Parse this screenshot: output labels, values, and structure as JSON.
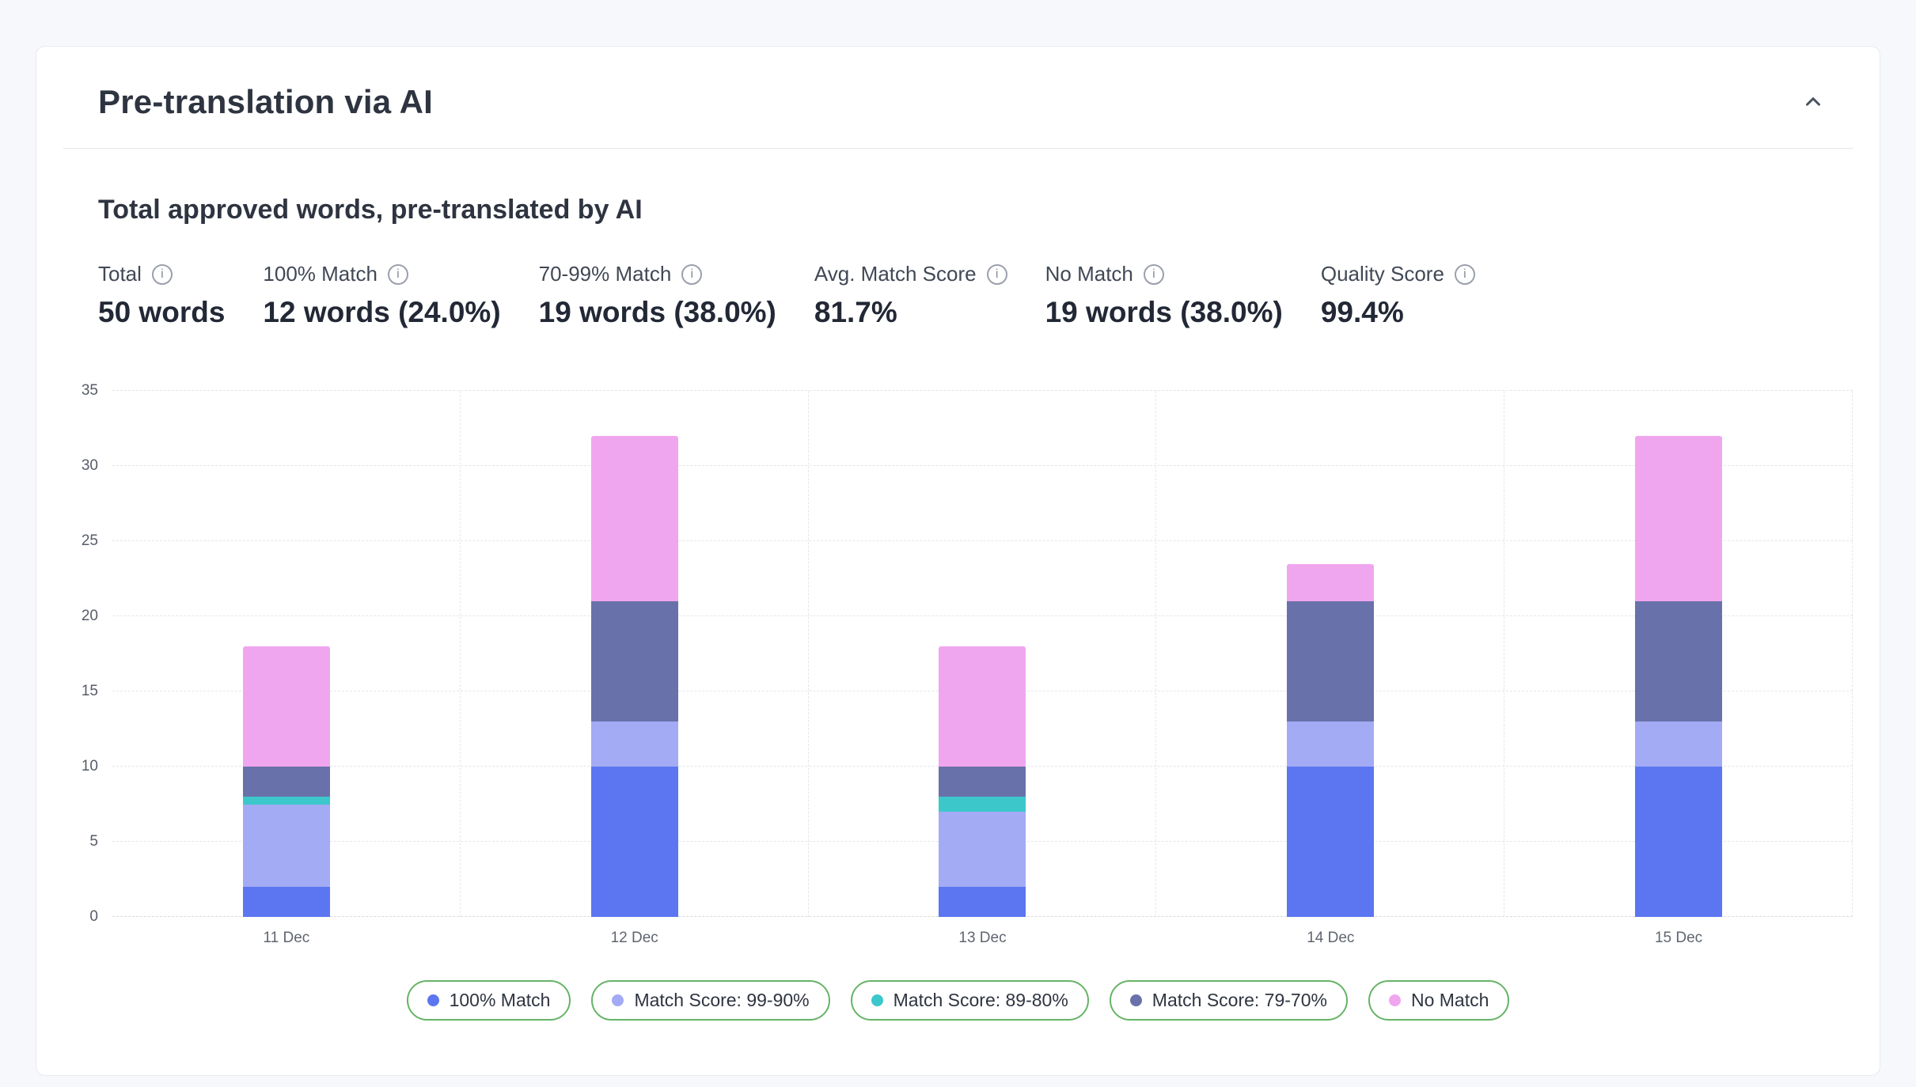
{
  "card": {
    "title": "Pre-translation via AI",
    "subtitle": "Total approved words, pre-translated by AI"
  },
  "stats": [
    {
      "label": "Total",
      "value": "50 words"
    },
    {
      "label": "100% Match",
      "value": "12 words (24.0%)"
    },
    {
      "label": "70-99% Match",
      "value": "19 words (38.0%)"
    },
    {
      "label": "Avg. Match Score",
      "value": "81.7%"
    },
    {
      "label": "No Match",
      "value": "19 words (38.0%)"
    },
    {
      "label": "Quality Score",
      "value": "99.4%"
    }
  ],
  "icons": {
    "info": "i",
    "collapse": "chevron-up"
  },
  "chart_data": {
    "type": "bar",
    "stacked": true,
    "title": "Total approved words, pre-translated by AI",
    "categories": [
      "11 Dec",
      "12 Dec",
      "13 Dec",
      "14 Dec",
      "15 Dec"
    ],
    "series": [
      {
        "name": "100% Match",
        "color": "#5b76f0",
        "values": [
          2,
          10,
          2,
          10,
          10
        ]
      },
      {
        "name": "Match Score: 99-90%",
        "color": "#a3abf4",
        "values": [
          5.5,
          3,
          5,
          3,
          3
        ]
      },
      {
        "name": "Match Score: 89-80%",
        "color": "#3cc7cb",
        "values": [
          0.5,
          0,
          1,
          0,
          0
        ]
      },
      {
        "name": "Match Score: 79-70%",
        "color": "#6971aa",
        "values": [
          2,
          8,
          2,
          8,
          8
        ]
      },
      {
        "name": "No Match",
        "color": "#f0a6ee",
        "values": [
          8,
          11,
          8,
          2.5,
          11
        ]
      }
    ],
    "totals": [
      18,
      32,
      18,
      23.5,
      32
    ],
    "xlabel": "",
    "ylabel": "",
    "ylim": [
      0,
      35
    ],
    "yticks": [
      0,
      5,
      10,
      15,
      20,
      25,
      30,
      35
    ],
    "grid": true,
    "legend_position": "bottom",
    "legend_border_color": "#66b366"
  }
}
